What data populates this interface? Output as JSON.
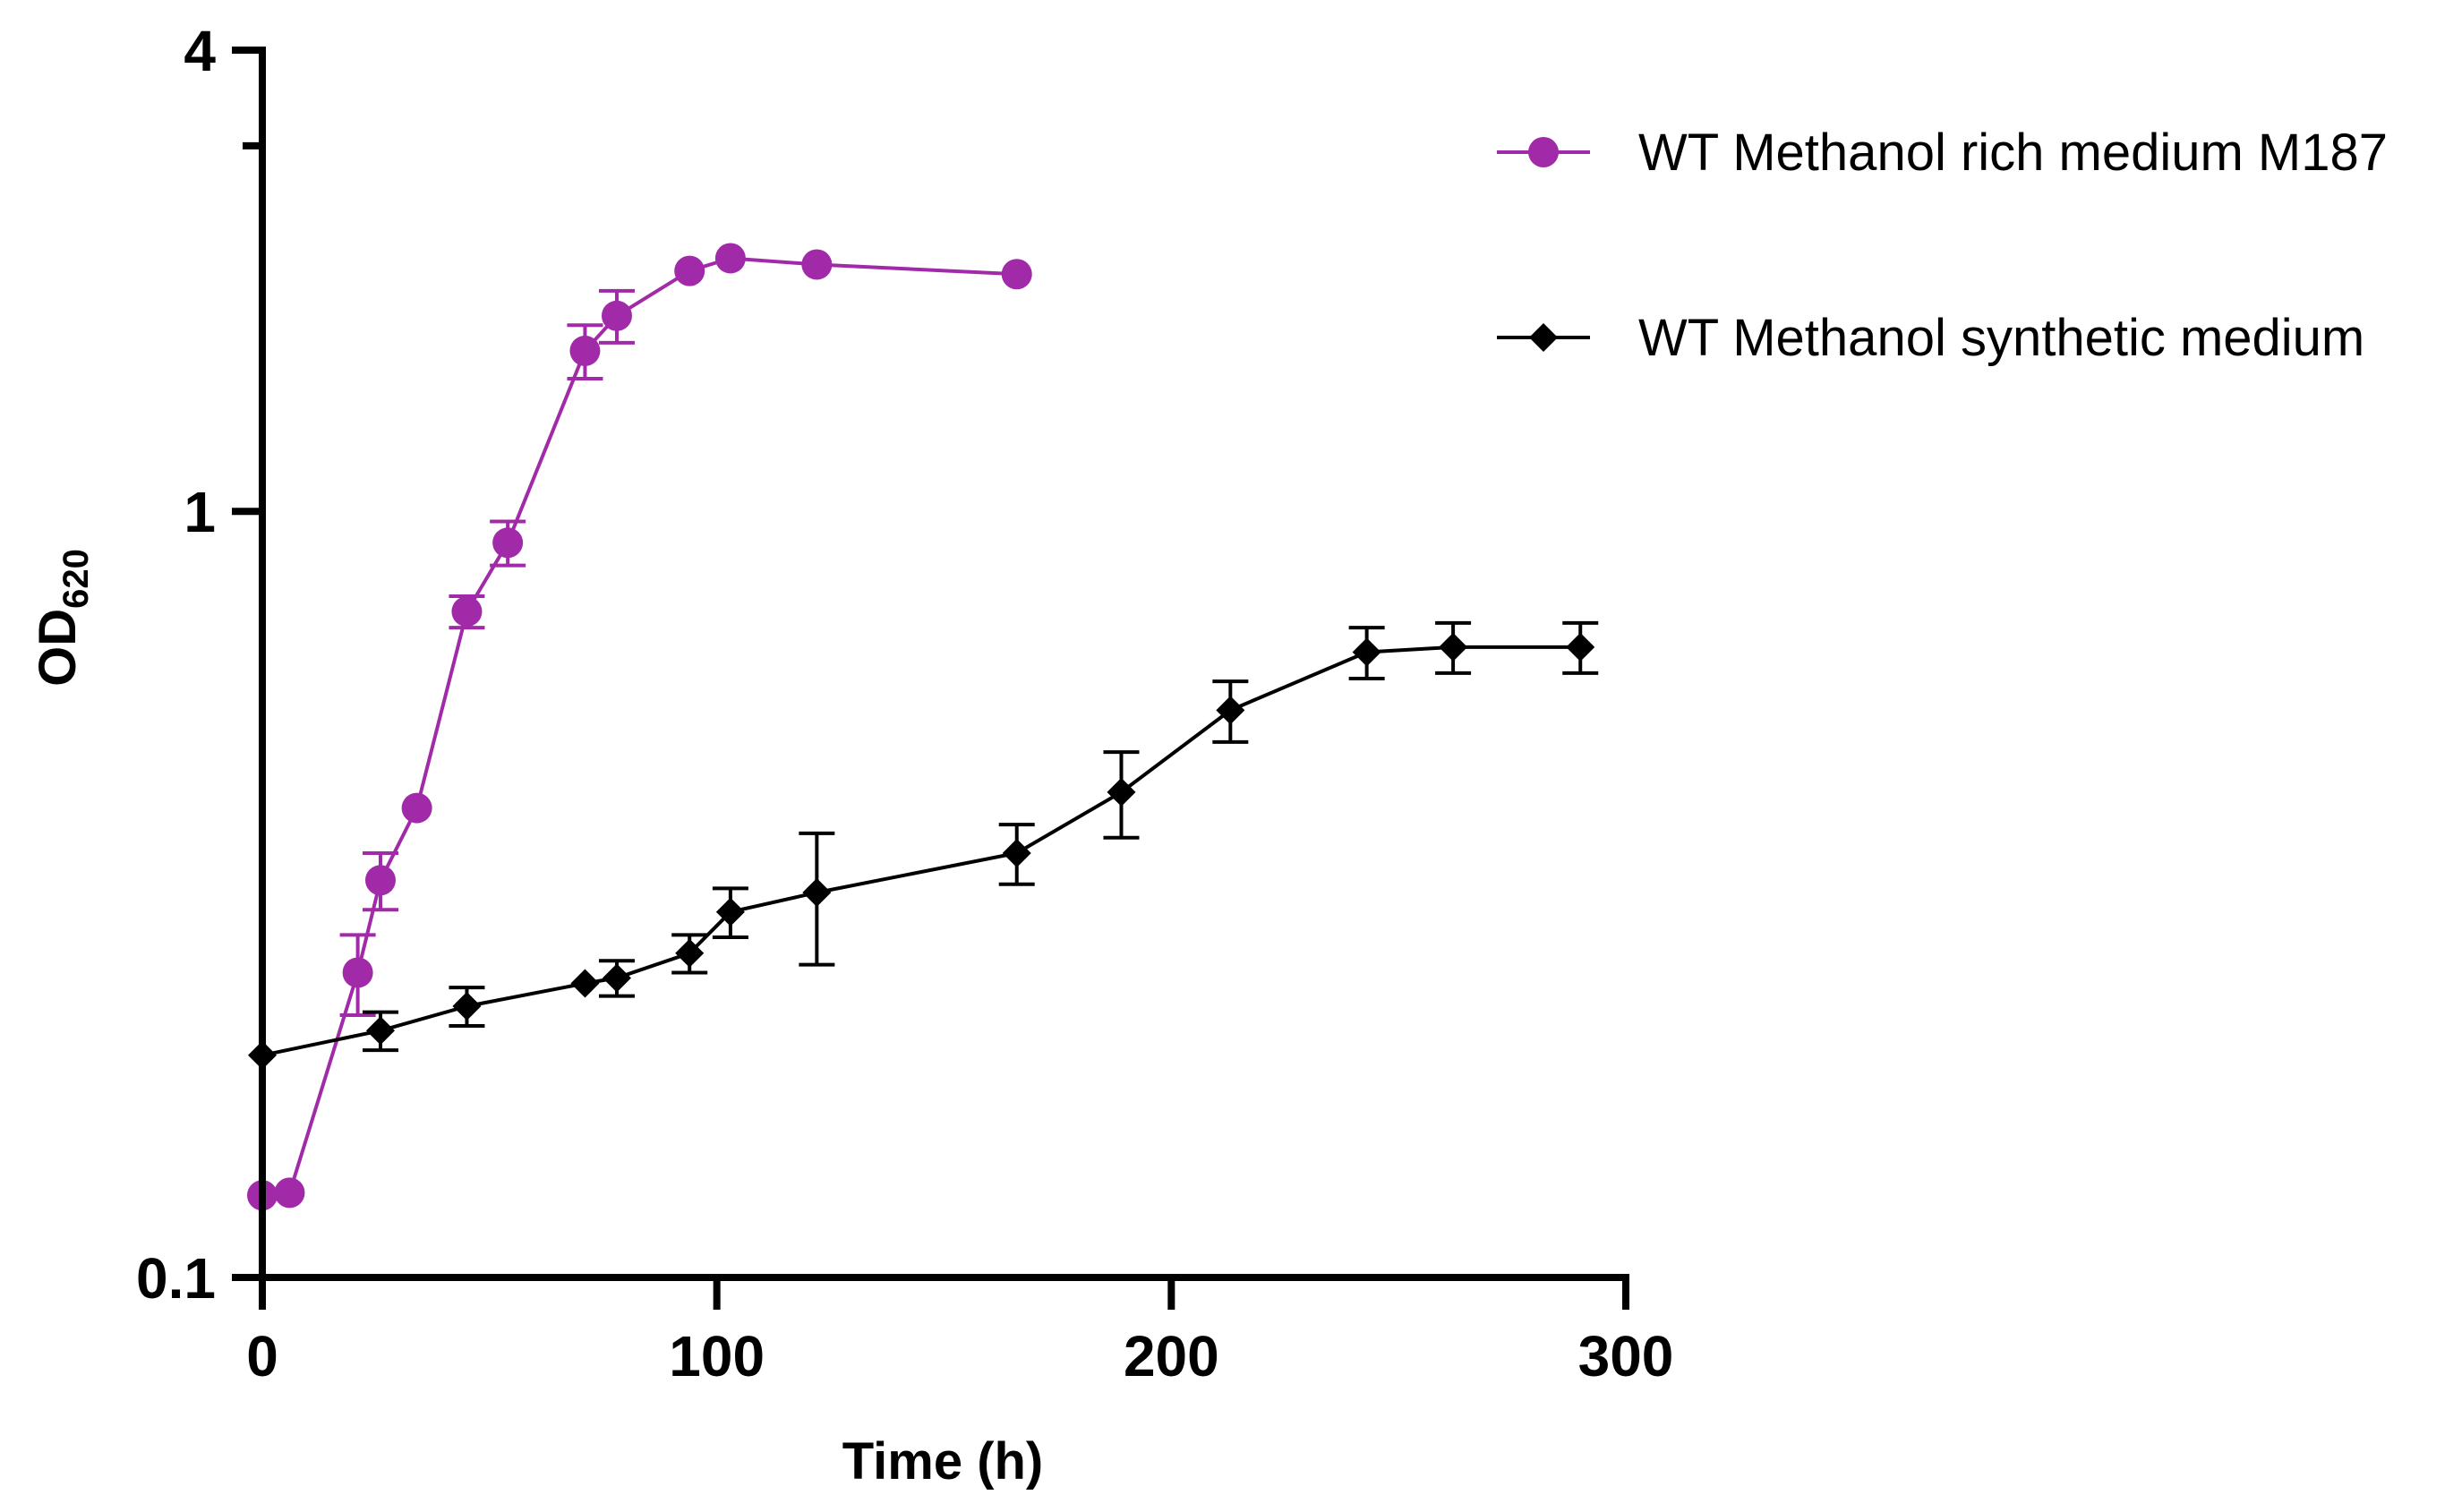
{
  "chart_data": {
    "type": "line",
    "title": "",
    "xlabel": "Time (h)",
    "ylabel_main": "OD",
    "ylabel_sub": "620",
    "xlim": [
      0,
      300
    ],
    "ylim": [
      0.1,
      4
    ],
    "yscale": "log",
    "x_ticks": [
      0,
      100,
      200,
      300
    ],
    "x_tick_labels": [
      "0",
      "100",
      "200",
      "300"
    ],
    "y_ticks": [
      0.1,
      1,
      4
    ],
    "y_tick_labels": [
      "0.1",
      "1",
      "4"
    ],
    "y_minor_ticks": [
      3
    ],
    "legend_position": "top-right",
    "series": [
      {
        "name": "WT Methanol rich medium M187",
        "color": "#a12aa8",
        "marker": "circle",
        "x": [
          0,
          6,
          21,
          26,
          34,
          45,
          54,
          71,
          78,
          94,
          103,
          122,
          166
        ],
        "y": [
          0.128,
          0.129,
          0.25,
          0.33,
          0.41,
          0.74,
          0.91,
          1.62,
          1.8,
          2.06,
          2.14,
          2.1,
          2.04
        ],
        "err": [
          0,
          0,
          0.03,
          0.028,
          0,
          0.035,
          0.06,
          0.13,
          0.14,
          0,
          0,
          0,
          0
        ]
      },
      {
        "name": "WT Methanol synthetic medium",
        "color": "#000000",
        "marker": "diamond",
        "x": [
          0,
          26,
          45,
          71,
          78,
          94,
          103,
          122,
          166,
          189,
          213,
          243,
          262,
          290
        ],
        "y": [
          0.195,
          0.21,
          0.226,
          0.242,
          0.246,
          0.265,
          0.3,
          0.318,
          0.358,
          0.43,
          0.55,
          0.655,
          0.665,
          0.665
        ],
        "err": [
          0,
          0.012,
          0.013,
          0,
          0.013,
          0.015,
          0.022,
          0.062,
          0.032,
          0.055,
          0.05,
          0.05,
          0.05,
          0.05
        ]
      }
    ]
  }
}
